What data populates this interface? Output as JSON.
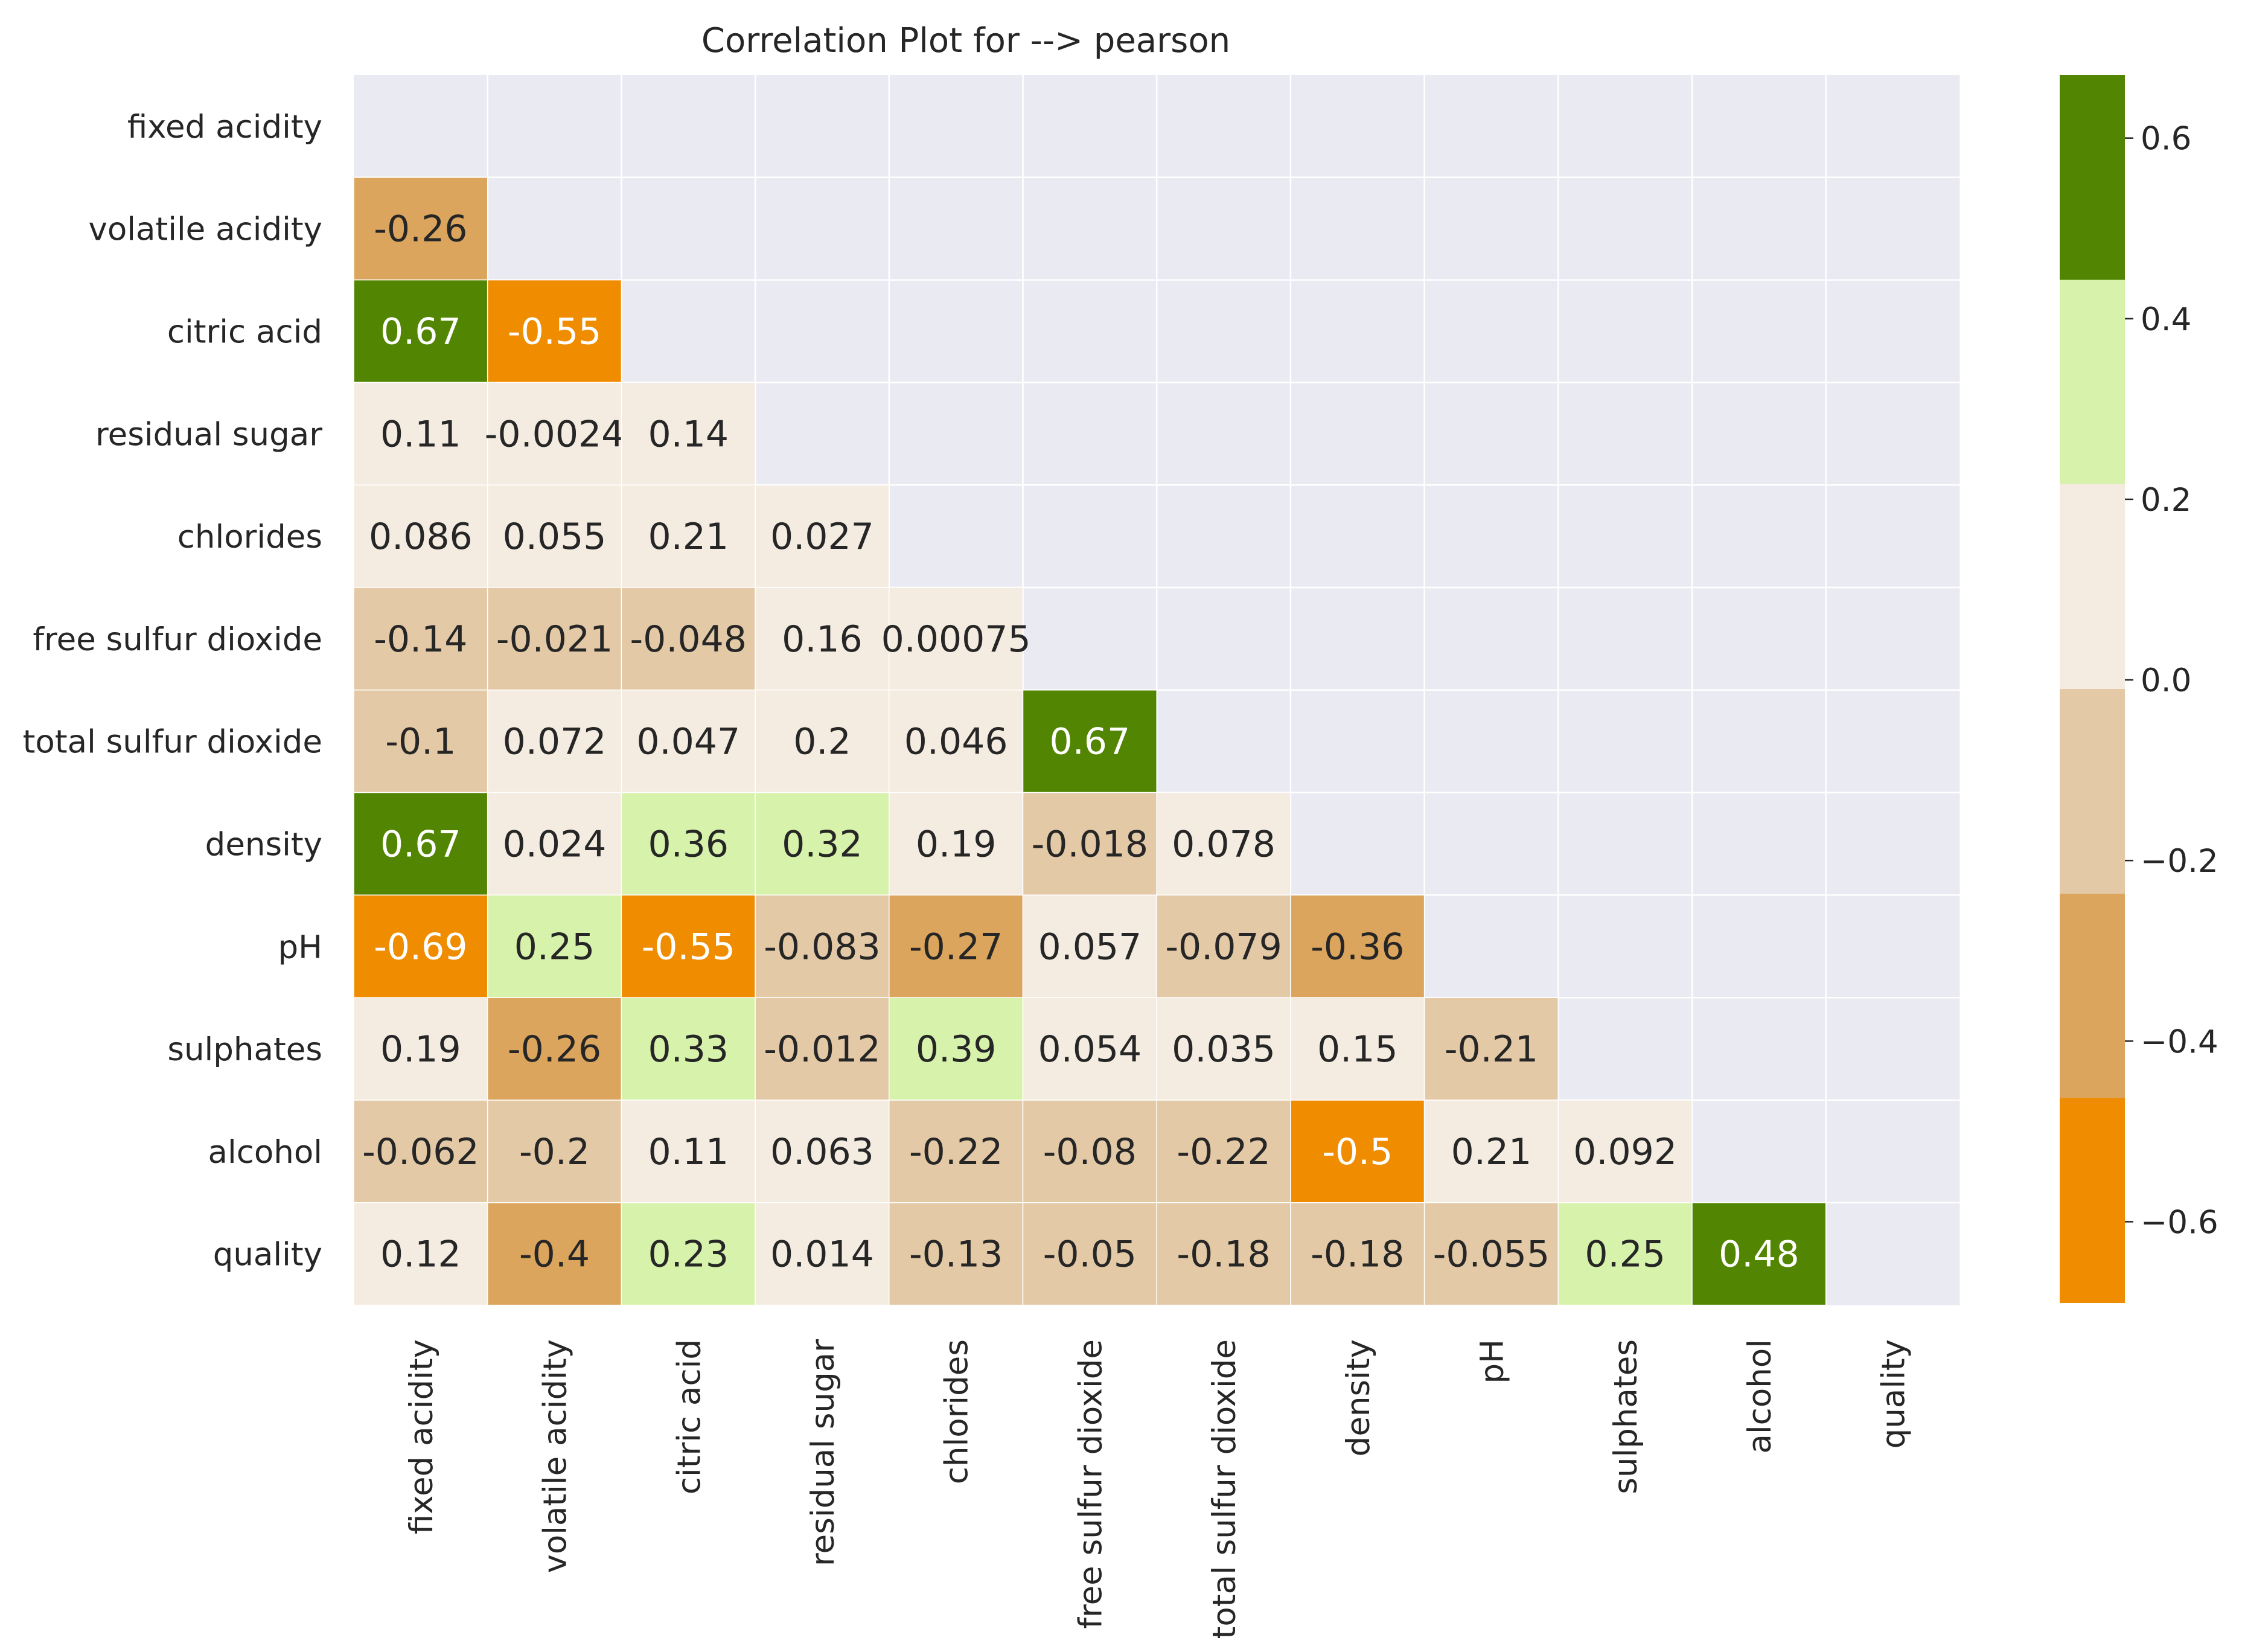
{
  "chart_data": {
    "type": "heatmap",
    "title": "Correlation Plot for --> pearson",
    "labels": [
      "fixed acidity",
      "volatile acidity",
      "citric acid",
      "residual sugar",
      "chlorides",
      "free sulfur dioxide",
      "total sulfur dioxide",
      "density",
      "pH",
      "sulphates",
      "alcohol",
      "quality"
    ],
    "mask": "upper-triangle-including-diagonal",
    "grid": true,
    "background_color": "#EAEAF2",
    "cells": [
      [],
      [
        "-0.26"
      ],
      [
        "0.67",
        "-0.55"
      ],
      [
        "0.11",
        "-0.0024",
        "0.14"
      ],
      [
        "0.086",
        "0.055",
        "0.21",
        "0.027"
      ],
      [
        "-0.14",
        "-0.021",
        "-0.048",
        "0.16",
        "0.00075"
      ],
      [
        "-0.1",
        "0.072",
        "0.047",
        "0.2",
        "0.046",
        "0.67"
      ],
      [
        "0.67",
        "0.024",
        "0.36",
        "0.32",
        "0.19",
        "-0.018",
        "0.078"
      ],
      [
        "-0.69",
        "0.25",
        "-0.55",
        "-0.083",
        "-0.27",
        "0.057",
        "-0.079",
        "-0.36"
      ],
      [
        "0.19",
        "-0.26",
        "0.33",
        "-0.012",
        "0.39",
        "0.054",
        "0.035",
        "0.15",
        "-0.21"
      ],
      [
        "-0.062",
        "-0.2",
        "0.11",
        "0.063",
        "-0.22",
        "-0.08",
        "-0.22",
        "-0.5",
        "0.21",
        "0.092"
      ],
      [
        "0.12",
        "-0.4",
        "0.23",
        "0.014",
        "-0.13",
        "-0.05",
        "-0.18",
        "-0.18",
        "-0.055",
        "0.25",
        "0.48"
      ]
    ],
    "colorbar": {
      "vmin": -0.69,
      "vmax": 0.67,
      "ticks": [
        "0.6",
        "0.4",
        "0.2",
        "0.0",
        "−0.2",
        "−0.4",
        "−0.6"
      ],
      "tick_values": [
        0.6,
        0.4,
        0.2,
        0.0,
        -0.2,
        -0.4,
        -0.6
      ],
      "bins": [
        {
          "from": -0.69,
          "to": -0.463,
          "color": "#F08C00"
        },
        {
          "from": -0.463,
          "to": -0.237,
          "color": "#DCA55D"
        },
        {
          "from": -0.237,
          "to": -0.01,
          "color": "#E3C9A6"
        },
        {
          "from": -0.01,
          "to": 0.217,
          "color": "#F5ECE1"
        },
        {
          "from": 0.217,
          "to": 0.443,
          "color": "#D6F2AB"
        },
        {
          "from": 0.443,
          "to": 0.67,
          "color": "#528502"
        }
      ]
    }
  }
}
